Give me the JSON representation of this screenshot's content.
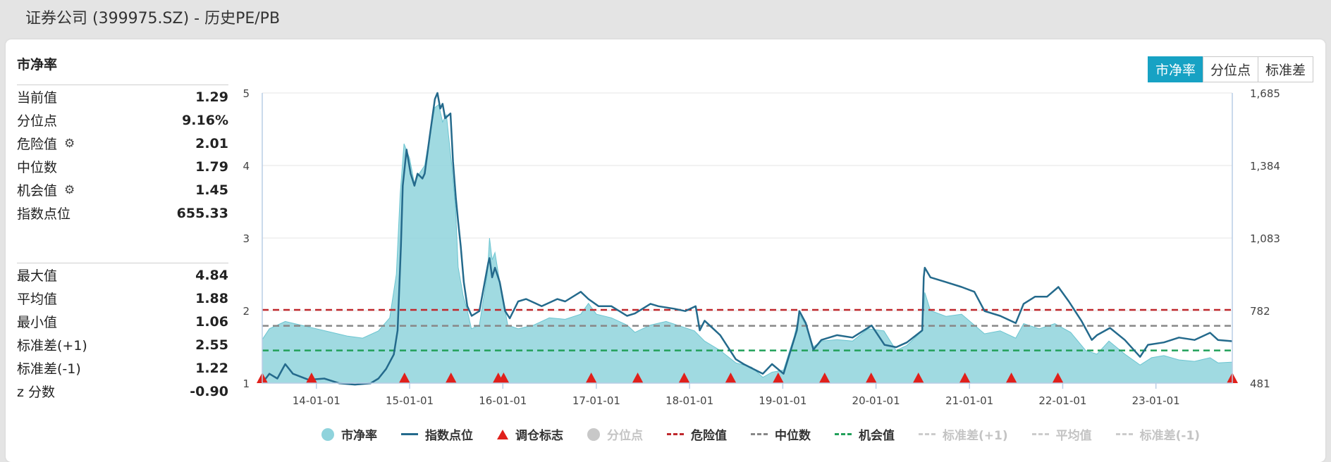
{
  "page": {
    "title": "证券公司 (399975.SZ) - 历史PE/PB"
  },
  "panel": {
    "heading": "市净率",
    "group1": [
      {
        "label": "当前值",
        "value": "1.29"
      },
      {
        "label": "分位点",
        "value": "9.16%"
      },
      {
        "label": "危险值",
        "value": "2.01",
        "settings_icon": "gear-icon"
      },
      {
        "label": "中位数",
        "value": "1.79"
      },
      {
        "label": "机会值",
        "value": "1.45",
        "settings_icon": "gear-icon"
      },
      {
        "label": "指数点位",
        "value": "655.33"
      }
    ],
    "group2": [
      {
        "label": "最大值",
        "value": "4.84"
      },
      {
        "label": "平均值",
        "value": "1.88"
      },
      {
        "label": "最小值",
        "value": "1.06"
      },
      {
        "label": "标准差(+1)",
        "value": "2.55"
      },
      {
        "label": "标准差(-1)",
        "value": "1.22"
      },
      {
        "label": "z 分数",
        "value": "-0.90"
      }
    ]
  },
  "toggle_buttons": [
    {
      "label": "市净率",
      "active": true
    },
    {
      "label": "分位点",
      "active": false
    },
    {
      "label": "标准差",
      "active": false
    }
  ],
  "legend": [
    {
      "label": "市净率",
      "symbol": "circle",
      "color": "#8fd3dc",
      "active": true
    },
    {
      "label": "指数点位",
      "symbol": "line",
      "color": "#246a8c",
      "active": true
    },
    {
      "label": "调仓标志",
      "symbol": "triangle",
      "color": "#e0201b",
      "active": true
    },
    {
      "label": "分位点",
      "symbol": "circle",
      "color": "#c8c8c8",
      "active": false
    },
    {
      "label": "危险值",
      "symbol": "dash",
      "color": "#c0282d",
      "active": true
    },
    {
      "label": "中位数",
      "symbol": "dash",
      "color": "#888888",
      "active": true
    },
    {
      "label": "机会值",
      "symbol": "dash",
      "color": "#22a05a",
      "active": true
    },
    {
      "label": "标准差(+1)",
      "symbol": "dash",
      "color": "#cccccc",
      "active": false
    },
    {
      "label": "平均值",
      "symbol": "dash",
      "color": "#cccccc",
      "active": false
    },
    {
      "label": "标准差(-1)",
      "symbol": "dash",
      "color": "#cccccc",
      "active": false
    }
  ],
  "chart_data": {
    "type": "area",
    "x_range": [
      "2013-06-03",
      "2023-10-27"
    ],
    "x_ticks": [
      "14-01-01",
      "15-01-01",
      "16-01-01",
      "17-01-01",
      "18-01-01",
      "19-01-01",
      "20-01-01",
      "21-01-01",
      "22-01-01",
      "23-01-01"
    ],
    "y_left": {
      "min": 1,
      "max": 5,
      "ticks": [
        "1",
        "2",
        "3",
        "4",
        "5"
      ]
    },
    "y_right": {
      "min": 481,
      "max": 1685,
      "ticks": [
        "481",
        "782",
        "1,083",
        "1,384",
        "1,685"
      ]
    },
    "grid": "horizontal",
    "series": [
      {
        "name": "市净率",
        "type": "area",
        "axis": "left",
        "color": "#8fd3dc",
        "points": [
          [
            "2013-06-03",
            1.6
          ],
          [
            "2013-07-01",
            1.75
          ],
          [
            "2013-09-01",
            1.85
          ],
          [
            "2013-11-01",
            1.8
          ],
          [
            "2014-01-01",
            1.75
          ],
          [
            "2014-03-01",
            1.7
          ],
          [
            "2014-05-01",
            1.65
          ],
          [
            "2014-07-01",
            1.62
          ],
          [
            "2014-09-01",
            1.72
          ],
          [
            "2014-10-15",
            1.9
          ],
          [
            "2014-11-10",
            2.5
          ],
          [
            "2014-11-25",
            3.6
          ],
          [
            "2014-12-10",
            4.3
          ],
          [
            "2015-01-01",
            4.1
          ],
          [
            "2015-01-20",
            3.75
          ],
          [
            "2015-02-10",
            3.9
          ],
          [
            "2015-03-01",
            4.0
          ],
          [
            "2015-03-20",
            4.4
          ],
          [
            "2015-04-10",
            4.8
          ],
          [
            "2015-04-25",
            4.84
          ],
          [
            "2015-05-10",
            4.6
          ],
          [
            "2015-05-25",
            4.7
          ],
          [
            "2015-06-15",
            4.0
          ],
          [
            "2015-06-30",
            3.4
          ],
          [
            "2015-07-10",
            2.6
          ],
          [
            "2015-07-30",
            2.2
          ],
          [
            "2015-08-15",
            2.0
          ],
          [
            "2015-08-31",
            1.75
          ],
          [
            "2015-10-01",
            1.8
          ],
          [
            "2015-11-01",
            2.5
          ],
          [
            "2015-11-10",
            3.0
          ],
          [
            "2015-11-20",
            2.7
          ],
          [
            "2015-12-01",
            2.8
          ],
          [
            "2015-12-15",
            2.5
          ],
          [
            "2016-01-05",
            2.1
          ],
          [
            "2016-01-20",
            1.8
          ],
          [
            "2016-03-01",
            1.75
          ],
          [
            "2016-05-01",
            1.8
          ],
          [
            "2016-07-01",
            1.9
          ],
          [
            "2016-09-01",
            1.88
          ],
          [
            "2016-11-01",
            1.95
          ],
          [
            "2016-12-01",
            2.1
          ],
          [
            "2017-01-01",
            1.95
          ],
          [
            "2017-03-01",
            1.9
          ],
          [
            "2017-05-01",
            1.8
          ],
          [
            "2017-06-01",
            1.7
          ],
          [
            "2017-08-01",
            1.8
          ],
          [
            "2017-10-01",
            1.85
          ],
          [
            "2017-12-01",
            1.78
          ],
          [
            "2018-01-20",
            1.72
          ],
          [
            "2018-03-01",
            1.58
          ],
          [
            "2018-05-01",
            1.45
          ],
          [
            "2018-07-01",
            1.28
          ],
          [
            "2018-09-01",
            1.22
          ],
          [
            "2018-10-15",
            1.08
          ],
          [
            "2018-11-20",
            1.15
          ],
          [
            "2019-01-04",
            1.18
          ],
          [
            "2019-02-15",
            1.65
          ],
          [
            "2019-03-07",
            1.95
          ],
          [
            "2019-04-01",
            1.8
          ],
          [
            "2019-05-01",
            1.5
          ],
          [
            "2019-06-01",
            1.58
          ],
          [
            "2019-08-01",
            1.6
          ],
          [
            "2019-10-01",
            1.58
          ],
          [
            "2019-12-01",
            1.75
          ],
          [
            "2020-02-01",
            1.72
          ],
          [
            "2020-03-20",
            1.45
          ],
          [
            "2020-05-01",
            1.52
          ],
          [
            "2020-06-30",
            1.72
          ],
          [
            "2020-07-10",
            2.25
          ],
          [
            "2020-08-01",
            2.0
          ],
          [
            "2020-10-01",
            1.92
          ],
          [
            "2020-12-01",
            1.95
          ],
          [
            "2021-01-20",
            1.8
          ],
          [
            "2021-03-01",
            1.68
          ],
          [
            "2021-05-01",
            1.72
          ],
          [
            "2021-07-01",
            1.62
          ],
          [
            "2021-08-01",
            1.82
          ],
          [
            "2021-10-01",
            1.75
          ],
          [
            "2021-12-01",
            1.82
          ],
          [
            "2022-02-01",
            1.7
          ],
          [
            "2022-04-01",
            1.45
          ],
          [
            "2022-05-15",
            1.4
          ],
          [
            "2022-07-01",
            1.58
          ],
          [
            "2022-09-01",
            1.4
          ],
          [
            "2022-10-31",
            1.25
          ],
          [
            "2022-12-15",
            1.35
          ],
          [
            "2023-02-01",
            1.38
          ],
          [
            "2023-04-01",
            1.32
          ],
          [
            "2023-06-01",
            1.3
          ],
          [
            "2023-08-01",
            1.35
          ],
          [
            "2023-09-01",
            1.28
          ],
          [
            "2023-10-27",
            1.29
          ]
        ]
      },
      {
        "name": "指数点位",
        "type": "line",
        "axis": "right",
        "color": "#246a8c",
        "points": [
          [
            "2013-06-03",
            481
          ],
          [
            "2013-07-01",
            520
          ],
          [
            "2013-08-01",
            500
          ],
          [
            "2013-09-01",
            560
          ],
          [
            "2013-10-01",
            520
          ],
          [
            "2013-12-01",
            495
          ],
          [
            "2014-02-01",
            500
          ],
          [
            "2014-04-01",
            480
          ],
          [
            "2014-06-01",
            475
          ],
          [
            "2014-08-01",
            480
          ],
          [
            "2014-09-01",
            500
          ],
          [
            "2014-10-01",
            540
          ],
          [
            "2014-10-31",
            600
          ],
          [
            "2014-11-15",
            700
          ],
          [
            "2014-11-28",
            1050
          ],
          [
            "2014-12-05",
            1300
          ],
          [
            "2014-12-20",
            1450
          ],
          [
            "2015-01-05",
            1350
          ],
          [
            "2015-01-20",
            1300
          ],
          [
            "2015-02-01",
            1350
          ],
          [
            "2015-02-20",
            1330
          ],
          [
            "2015-03-01",
            1350
          ],
          [
            "2015-03-20",
            1500
          ],
          [
            "2015-04-10",
            1660
          ],
          [
            "2015-04-20",
            1685
          ],
          [
            "2015-05-01",
            1620
          ],
          [
            "2015-05-10",
            1640
          ],
          [
            "2015-05-20",
            1580
          ],
          [
            "2015-06-10",
            1600
          ],
          [
            "2015-06-20",
            1400
          ],
          [
            "2015-07-01",
            1250
          ],
          [
            "2015-07-10",
            1150
          ],
          [
            "2015-07-20",
            1050
          ],
          [
            "2015-08-01",
            900
          ],
          [
            "2015-08-15",
            800
          ],
          [
            "2015-09-01",
            760
          ],
          [
            "2015-10-01",
            780
          ],
          [
            "2015-11-05",
            980
          ],
          [
            "2015-11-10",
            1000
          ],
          [
            "2015-11-20",
            920
          ],
          [
            "2015-12-01",
            960
          ],
          [
            "2015-12-20",
            900
          ],
          [
            "2016-01-10",
            780
          ],
          [
            "2016-01-28",
            750
          ],
          [
            "2016-03-01",
            820
          ],
          [
            "2016-04-01",
            830
          ],
          [
            "2016-06-01",
            800
          ],
          [
            "2016-08-01",
            830
          ],
          [
            "2016-09-01",
            820
          ],
          [
            "2016-11-01",
            860
          ],
          [
            "2016-12-01",
            830
          ],
          [
            "2017-01-10",
            800
          ],
          [
            "2017-03-01",
            800
          ],
          [
            "2017-05-01",
            760
          ],
          [
            "2017-06-01",
            770
          ],
          [
            "2017-08-01",
            810
          ],
          [
            "2017-09-01",
            800
          ],
          [
            "2017-11-01",
            790
          ],
          [
            "2017-12-15",
            780
          ],
          [
            "2018-01-25",
            800
          ],
          [
            "2018-02-10",
            700
          ],
          [
            "2018-03-01",
            740
          ],
          [
            "2018-05-01",
            680
          ],
          [
            "2018-07-01",
            580
          ],
          [
            "2018-08-01",
            560
          ],
          [
            "2018-10-15",
            520
          ],
          [
            "2018-11-20",
            560
          ],
          [
            "2019-01-04",
            520
          ],
          [
            "2019-02-25",
            700
          ],
          [
            "2019-03-07",
            780
          ],
          [
            "2019-04-01",
            730
          ],
          [
            "2019-05-01",
            620
          ],
          [
            "2019-06-01",
            660
          ],
          [
            "2019-08-01",
            680
          ],
          [
            "2019-10-01",
            670
          ],
          [
            "2019-12-15",
            720
          ],
          [
            "2020-02-03",
            640
          ],
          [
            "2020-03-20",
            630
          ],
          [
            "2020-05-01",
            650
          ],
          [
            "2020-06-30",
            700
          ],
          [
            "2020-07-06",
            920
          ],
          [
            "2020-07-10",
            960
          ],
          [
            "2020-08-01",
            920
          ],
          [
            "2020-10-01",
            900
          ],
          [
            "2020-12-01",
            880
          ],
          [
            "2021-01-20",
            860
          ],
          [
            "2021-03-01",
            780
          ],
          [
            "2021-05-01",
            760
          ],
          [
            "2021-07-01",
            730
          ],
          [
            "2021-08-01",
            810
          ],
          [
            "2021-09-15",
            840
          ],
          [
            "2021-11-01",
            840
          ],
          [
            "2021-12-15",
            880
          ],
          [
            "2022-01-25",
            820
          ],
          [
            "2022-03-15",
            740
          ],
          [
            "2022-04-25",
            660
          ],
          [
            "2022-05-15",
            680
          ],
          [
            "2022-07-05",
            710
          ],
          [
            "2022-09-01",
            660
          ],
          [
            "2022-10-31",
            590
          ],
          [
            "2022-12-01",
            640
          ],
          [
            "2023-02-01",
            650
          ],
          [
            "2023-04-01",
            670
          ],
          [
            "2023-06-01",
            660
          ],
          [
            "2023-08-01",
            690
          ],
          [
            "2023-09-01",
            660
          ],
          [
            "2023-10-27",
            655
          ]
        ]
      }
    ],
    "reference_lines": [
      {
        "name": "危险值",
        "value": 2.01,
        "color": "#c0282d",
        "style": "dashed"
      },
      {
        "name": "中位数",
        "value": 1.79,
        "color": "#888888",
        "style": "dashed"
      },
      {
        "name": "机会值",
        "value": 1.45,
        "color": "#22a05a",
        "style": "dashed"
      }
    ],
    "markers": {
      "name": "调仓标志",
      "shape": "triangle",
      "color": "#e0201b",
      "dates": [
        "2013-06-03",
        "2013-12-13",
        "2014-12-12",
        "2015-06-12",
        "2015-12-14",
        "2016-01-04",
        "2016-12-12",
        "2017-06-12",
        "2017-12-11",
        "2018-06-11",
        "2018-12-14",
        "2019-06-14",
        "2019-12-13",
        "2020-06-15",
        "2020-12-14",
        "2021-06-14",
        "2021-12-13",
        "2023-10-27"
      ]
    }
  }
}
